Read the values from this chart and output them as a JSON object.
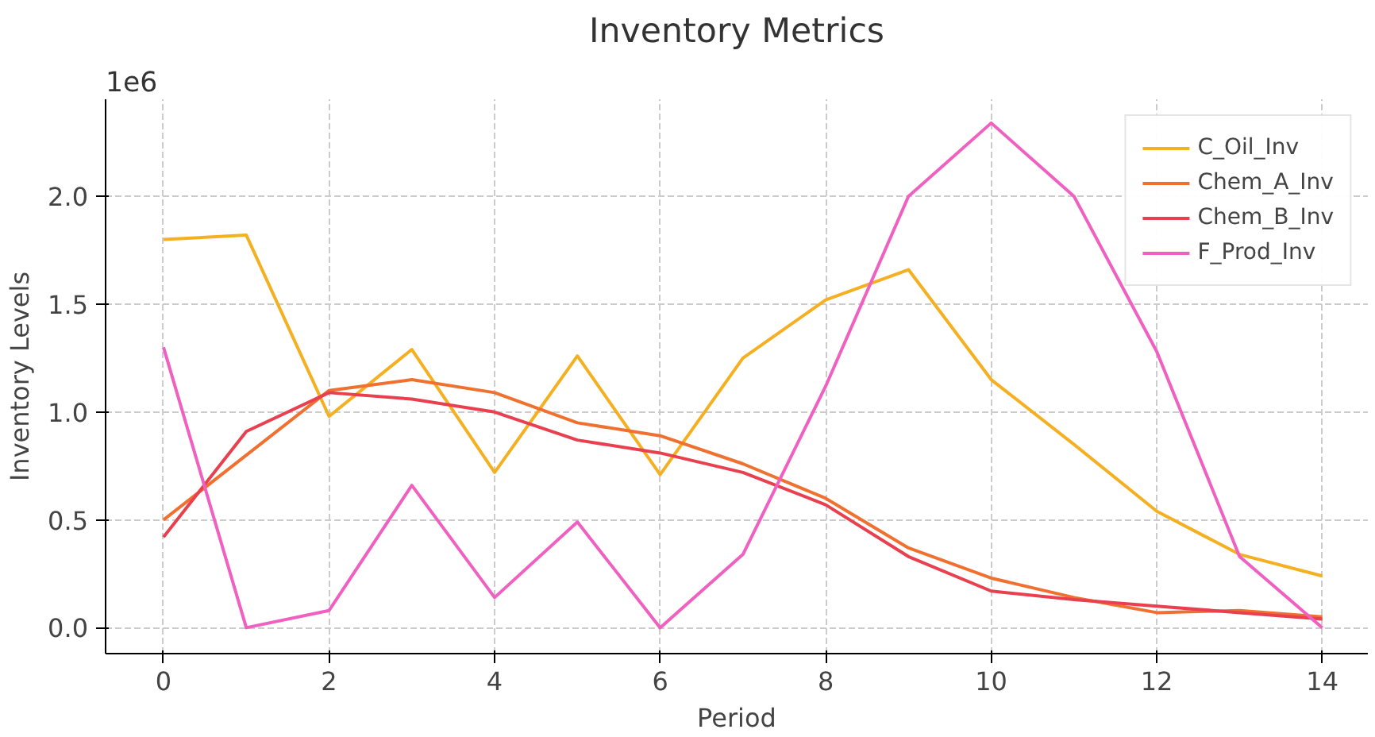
{
  "chart_data": {
    "type": "line",
    "title": "Inventory Metrics",
    "xlabel": "Period",
    "ylabel": "Inventory Levels",
    "annotations": [
      "1e6"
    ],
    "x": [
      0,
      1,
      2,
      3,
      4,
      5,
      6,
      7,
      8,
      9,
      10,
      11,
      12,
      13,
      14
    ],
    "series": [
      {
        "name": "C_Oil_Inv",
        "color": "#f5b022",
        "values": [
          1.8,
          1.82,
          0.98,
          1.29,
          0.72,
          1.26,
          0.71,
          1.25,
          1.52,
          1.66,
          1.15,
          0.85,
          0.54,
          0.34,
          0.24
        ]
      },
      {
        "name": "Chem_A_Inv",
        "color": "#f07030",
        "values": [
          0.5,
          0.8,
          1.1,
          1.15,
          1.09,
          0.95,
          0.89,
          0.76,
          0.6,
          0.37,
          0.23,
          0.14,
          0.07,
          0.08,
          0.05
        ]
      },
      {
        "name": "Chem_B_Inv",
        "color": "#e8404f",
        "values": [
          0.42,
          0.91,
          1.09,
          1.06,
          1.0,
          0.87,
          0.81,
          0.72,
          0.57,
          0.33,
          0.17,
          0.13,
          0.1,
          0.07,
          0.04
        ]
      },
      {
        "name": "F_Prod_Inv",
        "color": "#f060c0",
        "values": [
          1.3,
          0.0,
          0.08,
          0.66,
          0.14,
          0.49,
          0.0,
          0.34,
          1.12,
          2.0,
          2.34,
          2.0,
          1.28,
          0.33,
          0.0
        ]
      }
    ],
    "xlim": [
      -0.7,
      14.55
    ],
    "ylim": [
      -0.12,
      2.45
    ],
    "xticks": [
      0,
      2,
      4,
      6,
      8,
      10,
      12,
      14
    ],
    "yticks": [
      {
        "value": 0,
        "label": "0.0"
      },
      {
        "value": 0.5,
        "label": "0.5"
      },
      {
        "value": 1,
        "label": "1.0"
      },
      {
        "value": 1.5,
        "label": "1.5"
      },
      {
        "value": 2,
        "label": "2.0"
      }
    ],
    "grid": true,
    "legend": "top right",
    "line_style": "solid",
    "marker": "none"
  }
}
